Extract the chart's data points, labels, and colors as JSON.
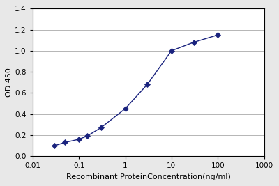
{
  "x_values": [
    0.03,
    0.05,
    0.1,
    0.15,
    0.3,
    1.0,
    3.0,
    10.0,
    30.0,
    100.0
  ],
  "y_values": [
    0.1,
    0.13,
    0.16,
    0.19,
    0.27,
    0.45,
    0.68,
    1.0,
    1.08,
    1.15
  ],
  "xlim": [
    0.01,
    1000
  ],
  "ylim": [
    0,
    1.4
  ],
  "yticks": [
    0,
    0.2,
    0.4,
    0.6,
    0.8,
    1.0,
    1.2,
    1.4
  ],
  "xtick_positions": [
    0.01,
    0.1,
    1,
    10,
    100,
    1000
  ],
  "xtick_labels": [
    "0.01",
    "0.1",
    "1",
    "10",
    "100",
    "1000"
  ],
  "xlabel": "Recombinant ProteinConcentration(ng/ml)",
  "ylabel": "OD 450",
  "line_color": "#1a237e",
  "marker": "D",
  "marker_size": 4,
  "line_width": 1.0,
  "fig_bg_color": "#e8e8e8",
  "plot_bg_color": "#ffffff",
  "xlabel_fontsize": 8,
  "ylabel_fontsize": 8,
  "tick_fontsize": 7.5,
  "grid_color": "#aaaaaa",
  "grid_linewidth": 0.6
}
